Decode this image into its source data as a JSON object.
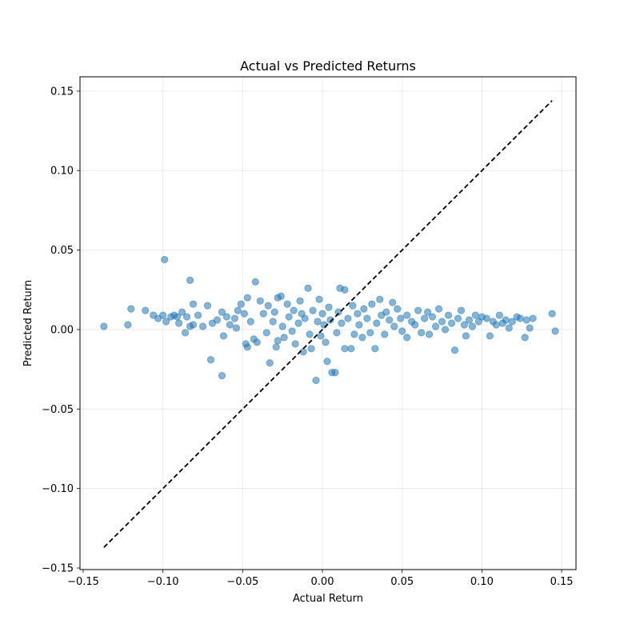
{
  "chart_data": {
    "type": "scatter",
    "title": "Actual vs Predicted Returns",
    "xlabel": "Actual Return",
    "ylabel": "Predicted Return",
    "xlim": [
      -0.152,
      0.159
    ],
    "ylim": [
      -0.151,
      0.159
    ],
    "xticks": [
      -0.15,
      -0.1,
      -0.05,
      0.0,
      0.05,
      0.1,
      0.15
    ],
    "xtick_labels": [
      "−0.15",
      "−0.10",
      "−0.05",
      "0.00",
      "0.05",
      "0.10",
      "0.15"
    ],
    "yticks": [
      -0.15,
      -0.1,
      -0.05,
      0.0,
      0.05,
      0.1,
      0.15
    ],
    "ytick_labels": [
      "−0.15",
      "−0.10",
      "−0.05",
      "0.00",
      "0.05",
      "0.10",
      "0.15"
    ],
    "grid": true,
    "colors": {
      "points": "#1f77b4",
      "reference_line": "#000000"
    },
    "reference_line": {
      "style": "dashed",
      "x": [
        -0.137,
        0.144
      ],
      "y": [
        -0.137,
        0.144
      ]
    },
    "series": [
      {
        "marker": "circle",
        "alpha": 0.55,
        "points": [
          [
            -0.137,
            0.002
          ],
          [
            -0.122,
            0.003
          ],
          [
            -0.12,
            0.013
          ],
          [
            -0.111,
            0.012
          ],
          [
            -0.106,
            0.009
          ],
          [
            -0.103,
            0.007
          ],
          [
            -0.1,
            0.009
          ],
          [
            -0.099,
            0.044
          ],
          [
            -0.098,
            0.005
          ],
          [
            -0.095,
            0.008
          ],
          [
            -0.093,
            0.009
          ],
          [
            -0.091,
            0.008
          ],
          [
            -0.09,
            0.004
          ],
          [
            -0.088,
            0.011
          ],
          [
            -0.086,
            -0.002
          ],
          [
            -0.085,
            0.008
          ],
          [
            -0.083,
            0.031
          ],
          [
            -0.083,
            0.002
          ],
          [
            -0.081,
            0.003
          ],
          [
            -0.081,
            0.016
          ],
          [
            -0.078,
            0.009
          ],
          [
            -0.075,
            0.002
          ],
          [
            -0.072,
            0.015
          ],
          [
            -0.07,
            -0.019
          ],
          [
            -0.069,
            0.004
          ],
          [
            -0.066,
            0.006
          ],
          [
            -0.063,
            0.011
          ],
          [
            -0.063,
            -0.029
          ],
          [
            -0.062,
            -0.004
          ],
          [
            -0.06,
            0.008
          ],
          [
            -0.058,
            0.003
          ],
          [
            -0.055,
            0.007
          ],
          [
            -0.054,
            0.001
          ],
          [
            -0.053,
            0.012
          ],
          [
            -0.051,
            0.016
          ],
          [
            -0.049,
            0.01
          ],
          [
            -0.048,
            -0.009
          ],
          [
            -0.047,
            -0.011
          ],
          [
            -0.047,
            0.02
          ],
          [
            -0.045,
            0.005
          ],
          [
            -0.043,
            -0.006
          ],
          [
            -0.042,
            0.03
          ],
          [
            -0.041,
            -0.008
          ],
          [
            -0.039,
            0.018
          ],
          [
            -0.037,
            0.01
          ],
          [
            -0.035,
            -0.002
          ],
          [
            -0.034,
            0.015
          ],
          [
            -0.033,
            -0.021
          ],
          [
            -0.031,
            0.005
          ],
          [
            -0.03,
            0.011
          ],
          [
            -0.029,
            -0.011
          ],
          [
            -0.028,
            -0.007
          ],
          [
            -0.028,
            0.02
          ],
          [
            -0.026,
            0.021
          ],
          [
            -0.025,
            0.002
          ],
          [
            -0.024,
            -0.005
          ],
          [
            -0.022,
            0.016
          ],
          [
            -0.021,
            0.008
          ],
          [
            -0.019,
            -0.001
          ],
          [
            -0.018,
            0.012
          ],
          [
            -0.017,
            -0.009
          ],
          [
            -0.015,
            0.004
          ],
          [
            -0.014,
            0.018
          ],
          [
            -0.013,
            0.01
          ],
          [
            -0.012,
            -0.014
          ],
          [
            -0.011,
            0.007
          ],
          [
            -0.009,
            0.026
          ],
          [
            -0.008,
            -0.003
          ],
          [
            -0.007,
            -0.012
          ],
          [
            -0.006,
            0.012
          ],
          [
            -0.004,
            -0.032
          ],
          [
            -0.003,
            0.005
          ],
          [
            -0.002,
            0.019
          ],
          [
            -0.001,
            -0.004
          ],
          [
            0.0,
            0.01
          ],
          [
            0.001,
            0.003
          ],
          [
            0.002,
            -0.008
          ],
          [
            0.003,
            -0.02
          ],
          [
            0.004,
            0.014
          ],
          [
            0.005,
            0.006
          ],
          [
            0.006,
            -0.027
          ],
          [
            0.008,
            -0.027
          ],
          [
            0.009,
            -0.002
          ],
          [
            0.01,
            0.011
          ],
          [
            0.011,
            0.026
          ],
          [
            0.012,
            0.004
          ],
          [
            0.014,
            0.025
          ],
          [
            0.014,
            -0.012
          ],
          [
            0.016,
            0.007
          ],
          [
            0.018,
            -0.012
          ],
          [
            0.019,
            0.015
          ],
          [
            0.02,
            -0.003
          ],
          [
            0.022,
            0.01
          ],
          [
            0.023,
            0.003
          ],
          [
            0.025,
            -0.005
          ],
          [
            0.026,
            0.013
          ],
          [
            0.028,
            0.007
          ],
          [
            0.03,
            -0.002
          ],
          [
            0.031,
            0.016
          ],
          [
            0.033,
            -0.012
          ],
          [
            0.034,
            0.004
          ],
          [
            0.036,
            0.019
          ],
          [
            0.037,
            0.009
          ],
          [
            0.039,
            -0.003
          ],
          [
            0.04,
            0.011
          ],
          [
            0.042,
            0.006
          ],
          [
            0.044,
            0.017
          ],
          [
            0.045,
            0.002
          ],
          [
            0.047,
            0.013
          ],
          [
            0.049,
            0.007
          ],
          [
            0.05,
            -0.001
          ],
          [
            0.053,
            0.009
          ],
          [
            0.053,
            -0.005
          ],
          [
            0.056,
            0.005
          ],
          [
            0.058,
            0.003
          ],
          [
            0.06,
            0.012
          ],
          [
            0.062,
            -0.002
          ],
          [
            0.064,
            0.007
          ],
          [
            0.066,
            0.011
          ],
          [
            0.067,
            -0.003
          ],
          [
            0.069,
            0.008
          ],
          [
            0.071,
            0.002
          ],
          [
            0.073,
            0.013
          ],
          [
            0.075,
            0.005
          ],
          [
            0.077,
            0.0
          ],
          [
            0.079,
            0.009
          ],
          [
            0.081,
            0.004
          ],
          [
            0.083,
            -0.013
          ],
          [
            0.085,
            0.007
          ],
          [
            0.087,
            0.012
          ],
          [
            0.089,
            0.003
          ],
          [
            0.09,
            -0.004
          ],
          [
            0.092,
            0.006
          ],
          [
            0.094,
            0.002
          ],
          [
            0.096,
            0.009
          ],
          [
            0.098,
            0.005
          ],
          [
            0.1,
            0.008
          ],
          [
            0.103,
            0.007
          ],
          [
            0.105,
            -0.004
          ],
          [
            0.107,
            0.005
          ],
          [
            0.109,
            0.003
          ],
          [
            0.111,
            0.009
          ],
          [
            0.113,
            0.004
          ],
          [
            0.115,
            0.006
          ],
          [
            0.117,
            0.001
          ],
          [
            0.119,
            0.005
          ],
          [
            0.122,
            0.008
          ],
          [
            0.124,
            0.007
          ],
          [
            0.127,
            -0.005
          ],
          [
            0.128,
            0.006
          ],
          [
            0.13,
            0.001
          ],
          [
            0.132,
            0.007
          ],
          [
            0.144,
            0.01
          ],
          [
            0.146,
            -0.001
          ]
        ]
      }
    ]
  }
}
